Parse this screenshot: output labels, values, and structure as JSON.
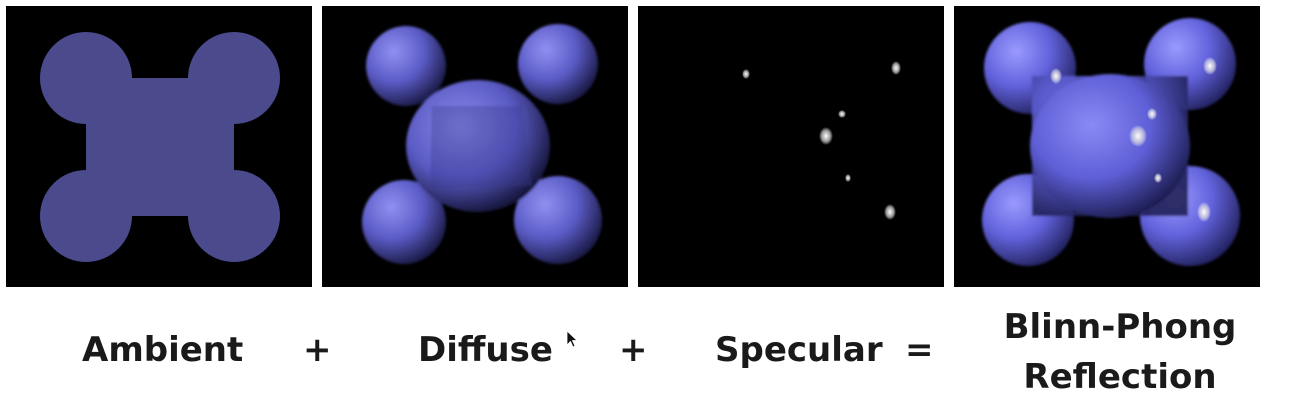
{
  "labels": {
    "ambient": "Ambient",
    "diffuse": "Diffuse",
    "specular": "Specular",
    "result_line1": "Blinn-Phong",
    "result_line2": "Reflection"
  },
  "operators": {
    "plus": "+",
    "equals": "="
  },
  "colors": {
    "panel_background": "#000000",
    "ambient_fill": "#4a4a8c",
    "diffuse_light": "#8a8aea",
    "diffuse_dark": "#0c0c22",
    "specular_highlight": "#ffffff",
    "label_text": "#1a1a1a"
  }
}
